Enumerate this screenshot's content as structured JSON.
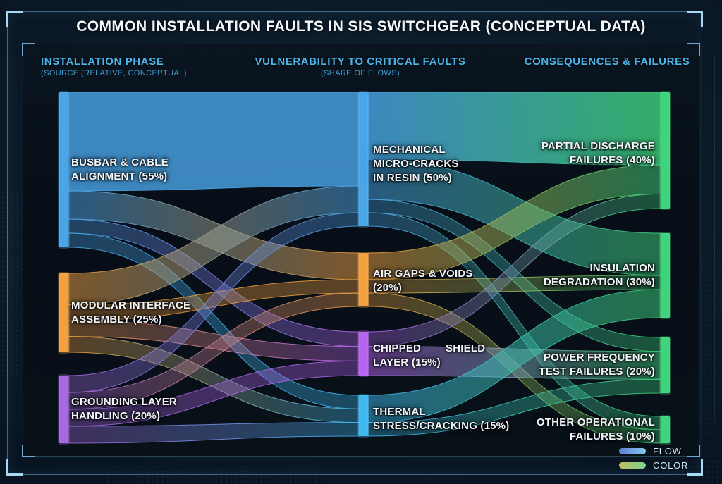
{
  "title": "COMMON INSTALLATION FAULTS IN SIS SWITCHGEAR (CONCEPTUAL DATA)",
  "legend": {
    "items": [
      {
        "label": "FLOW",
        "swatch": "blue-gradient-pill"
      },
      {
        "label": "COLOR",
        "swatch": "yellow-green-gradient-pill"
      }
    ]
  },
  "chart_data": {
    "type": "sankey",
    "unit": "%",
    "columns": [
      {
        "header": "INSTALLATION PHASE",
        "subheader": "(SOURCE (RELATIVE, CONCEPTUAL)",
        "nodes": [
          {
            "id": "busbar",
            "label": "BUSBAR & CABLE\nALIGNMENT (55%)",
            "pct": 55,
            "color": "#4AA5E8"
          },
          {
            "id": "modular",
            "label": "MODULAR INTERFACE\nASSEMBLY (25%)",
            "pct": 25,
            "color": "#F2A13F"
          },
          {
            "id": "grounding",
            "label": "GROUNDING LAYER\nHANDLING (20%)",
            "pct": 20,
            "color": "#A76AE3"
          }
        ]
      },
      {
        "header": "VULNERABILITY TO CRITICAL FAULTS",
        "subheader": "(SHARE OF FLOWS)",
        "nodes": [
          {
            "id": "mech",
            "label": "MECHANICAL\nMICRO-CRACKS\nIN RESIN (50%)",
            "pct": 50,
            "color": "#4AA5E8"
          },
          {
            "id": "airgaps",
            "label": "AIR GAPS & VOIDS\n(20%)",
            "pct": 20,
            "color": "#F2A13F"
          },
          {
            "id": "chipped",
            "label": "CHIPPED        SHIELD\nLAYER (15%)",
            "pct": 15,
            "color": "#B564EF"
          },
          {
            "id": "thermal",
            "label": "THERMAL\nSTRESS/CRACKING (15%)",
            "pct": 15,
            "color": "#3FB8F0"
          }
        ]
      },
      {
        "header": "CONSEQUENCES & FAILURES",
        "subheader": "",
        "nodes": [
          {
            "id": "pd",
            "label": "PARTIAL DISCHARGE\nFAILURES (40%)",
            "pct": 40,
            "color": "#3ED47B"
          },
          {
            "id": "insulation",
            "label": "INSULATION\nDEGRADATION (30%)",
            "pct": 30,
            "color": "#3ED47B"
          },
          {
            "id": "pftf",
            "label": "POWER FREQUENCY\nTEST FAILURES (20%)",
            "pct": 20,
            "color": "#3ED47B"
          },
          {
            "id": "oof",
            "label": "OTHER OPERATIONAL\nFAILURES (10%)",
            "pct": 10,
            "color": "#3ED47B"
          }
        ]
      }
    ],
    "links": [
      {
        "source": "busbar",
        "target": "mech",
        "value": 35
      },
      {
        "source": "busbar",
        "target": "airgaps",
        "value": 10
      },
      {
        "source": "busbar",
        "target": "chipped",
        "value": 5
      },
      {
        "source": "busbar",
        "target": "thermal",
        "value": 5
      },
      {
        "source": "modular",
        "target": "mech",
        "value": 10
      },
      {
        "source": "modular",
        "target": "airgaps",
        "value": 5
      },
      {
        "source": "modular",
        "target": "chipped",
        "value": 5
      },
      {
        "source": "modular",
        "target": "thermal",
        "value": 5
      },
      {
        "source": "grounding",
        "target": "mech",
        "value": 5
      },
      {
        "source": "grounding",
        "target": "airgaps",
        "value": 5
      },
      {
        "source": "grounding",
        "target": "chipped",
        "value": 5
      },
      {
        "source": "grounding",
        "target": "thermal",
        "value": 5
      },
      {
        "source": "mech",
        "target": "pd",
        "value": 25
      },
      {
        "source": "mech",
        "target": "insulation",
        "value": 15
      },
      {
        "source": "mech",
        "target": "pftf",
        "value": 5
      },
      {
        "source": "mech",
        "target": "oof",
        "value": 5
      },
      {
        "source": "airgaps",
        "target": "pd",
        "value": 10
      },
      {
        "source": "airgaps",
        "target": "insulation",
        "value": 5
      },
      {
        "source": "airgaps",
        "target": "oof",
        "value": 5
      },
      {
        "source": "chipped",
        "target": "pd",
        "value": 5
      },
      {
        "source": "chipped",
        "target": "pftf",
        "value": 10
      },
      {
        "source": "thermal",
        "target": "insulation",
        "value": 10
      },
      {
        "source": "thermal",
        "target": "pftf",
        "value": 5
      }
    ]
  }
}
